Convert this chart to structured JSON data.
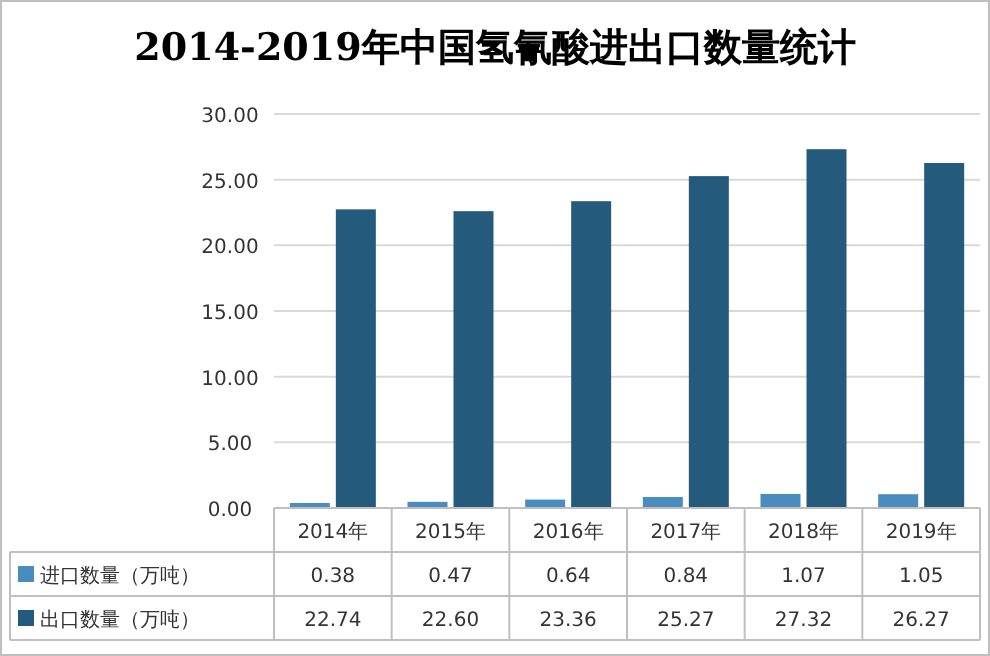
{
  "chart_data": {
    "type": "bar",
    "title": "2014-2019年中国氢氰酸进出口数量统计",
    "categories": [
      "2014年",
      "2015年",
      "2016年",
      "2017年",
      "2018年",
      "2019年"
    ],
    "series": [
      {
        "name": "进口数量（万吨）",
        "color": "#4a8cbf",
        "values": [
          0.38,
          0.47,
          0.64,
          0.84,
          1.07,
          1.05
        ],
        "value_labels": [
          "0.38",
          "0.47",
          "0.64",
          "0.84",
          "1.07",
          "1.05"
        ]
      },
      {
        "name": "出口数量（万吨）",
        "color": "#245a7c",
        "values": [
          22.74,
          22.6,
          23.36,
          25.27,
          27.32,
          26.27
        ],
        "value_labels": [
          "22.74",
          "22.60",
          "23.36",
          "25.27",
          "27.32",
          "26.27"
        ]
      }
    ],
    "ylim": [
      0,
      30
    ],
    "yticks": [
      {
        "value": 0,
        "label": "0.00"
      },
      {
        "value": 5,
        "label": "5.00"
      },
      {
        "value": 10,
        "label": "10.00"
      },
      {
        "value": 15,
        "label": "15.00"
      },
      {
        "value": 20,
        "label": "20.00"
      },
      {
        "value": 25,
        "label": "25.00"
      },
      {
        "value": 30,
        "label": "30.00"
      }
    ],
    "grid": "y",
    "data_labels": true,
    "legend": "bottom left"
  }
}
